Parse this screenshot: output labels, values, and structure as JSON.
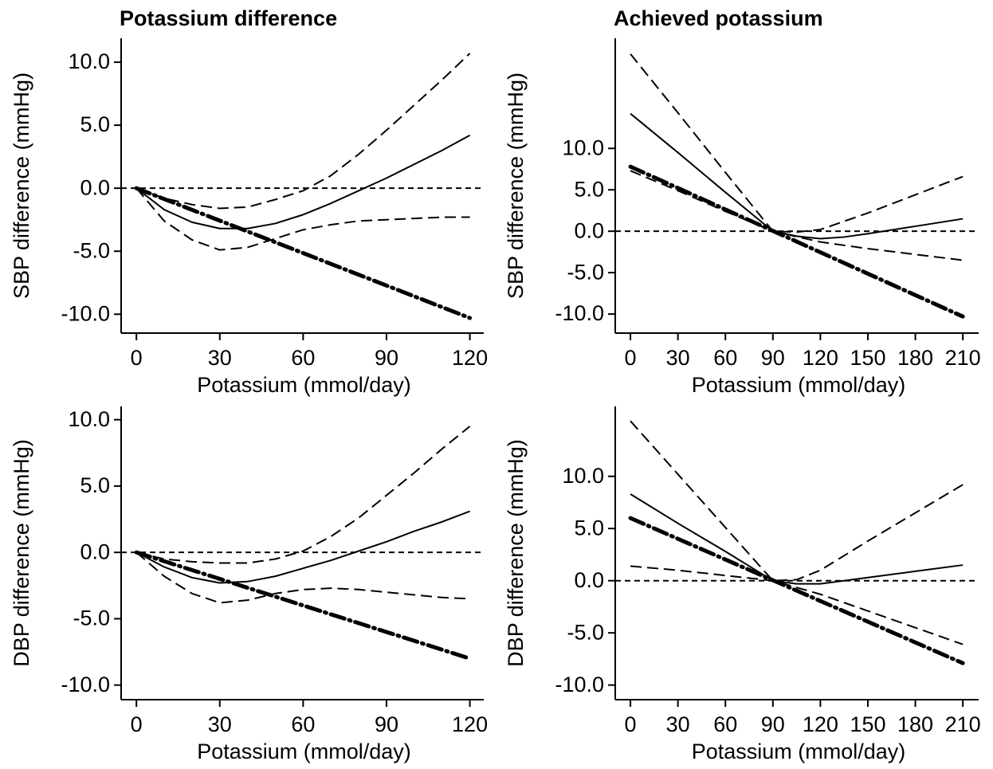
{
  "chart_data": [
    {
      "type": "line",
      "title": "Potassium difference",
      "x_label": "Potassium (mmol/day)",
      "y_label": "SBP difference (mmHg)",
      "xlim": [
        -5.5,
        125
      ],
      "ylim": [
        -11.5,
        11.9
      ],
      "xticks": [
        0,
        30,
        60,
        90,
        120
      ],
      "yticks": [
        {
          "value": -10,
          "label": "-10.0"
        },
        {
          "value": -5,
          "label": "-5.0"
        },
        {
          "value": 0,
          "label": "0.0"
        },
        {
          "value": 5,
          "label": "5.0"
        },
        {
          "value": 10,
          "label": "10.0"
        }
      ],
      "reference_line": 0,
      "series": [
        {
          "color": "#000000",
          "style": "solid",
          "x": [
            0,
            10,
            20,
            30,
            40,
            50,
            60,
            70,
            80,
            90,
            100,
            110,
            120
          ],
          "values": [
            0,
            -1.7,
            -2.7,
            -3.2,
            -3.2,
            -2.8,
            -2.1,
            -1.2,
            -0.2,
            0.8,
            1.9,
            3.0,
            4.2
          ]
        },
        {
          "color": "#000000",
          "style": "dashed",
          "x": [
            0,
            10,
            20,
            30,
            40,
            50,
            60,
            70,
            80,
            90,
            100,
            110,
            120
          ],
          "values": [
            0,
            -0.8,
            -1.3,
            -1.6,
            -1.5,
            -0.9,
            -0.2,
            1.0,
            2.7,
            4.6,
            6.6,
            8.6,
            10.7
          ]
        },
        {
          "color": "#000000",
          "style": "dashed",
          "x": [
            0,
            10,
            20,
            30,
            40,
            50,
            60,
            70,
            80,
            90,
            100,
            110,
            120
          ],
          "values": [
            0,
            -2.6,
            -4.1,
            -4.9,
            -4.7,
            -4.0,
            -3.3,
            -2.9,
            -2.6,
            -2.5,
            -2.4,
            -2.3,
            -2.3
          ]
        },
        {
          "color": "#000000",
          "style": "dashdot",
          "x": [
            0,
            120
          ],
          "values": [
            0,
            -10.3
          ]
        }
      ]
    },
    {
      "type": "line",
      "title": "Achieved potassium",
      "x_label": "Potassium (mmol/day)",
      "y_label": "SBP difference (mmHg)",
      "xlim": [
        -9.6,
        220
      ],
      "ylim": [
        -12.3,
        23.3
      ],
      "xticks": [
        0,
        30,
        60,
        90,
        120,
        150,
        180,
        210
      ],
      "yticks": [
        {
          "value": -10,
          "label": "-10.0"
        },
        {
          "value": -5,
          "label": "-5.0"
        },
        {
          "value": 0,
          "label": "0.0"
        },
        {
          "value": 5,
          "label": "5.0"
        },
        {
          "value": 10,
          "label": "10.0"
        }
      ],
      "reference_line": 0,
      "series": [
        {
          "color": "#000000",
          "style": "solid",
          "x": [
            0,
            30,
            60,
            90,
            105,
            120,
            135,
            150,
            180,
            210
          ],
          "values": [
            14.2,
            9.5,
            4.7,
            0,
            -0.6,
            -0.9,
            -0.7,
            -0.3,
            0.6,
            1.5
          ]
        },
        {
          "color": "#000000",
          "style": "dashed",
          "x": [
            0,
            30,
            60,
            90,
            105,
            120,
            150,
            180,
            210
          ],
          "values": [
            21.4,
            14.3,
            7.1,
            0,
            -0.1,
            0.2,
            2.2,
            4.4,
            6.6
          ]
        },
        {
          "color": "#000000",
          "style": "dashed",
          "x": [
            0,
            30,
            60,
            90,
            120,
            150,
            180,
            210
          ],
          "values": [
            7.3,
            4.9,
            2.4,
            0,
            -1.3,
            -2.1,
            -2.8,
            -3.5
          ]
        },
        {
          "color": "#000000",
          "style": "dashdot",
          "x": [
            0,
            210
          ],
          "values": [
            7.8,
            -10.3
          ]
        }
      ]
    },
    {
      "type": "line",
      "x_label": "Potassium (mmol/day)",
      "y_label": "DBP difference (mmHg)",
      "xlim": [
        -5.5,
        125
      ],
      "ylim": [
        -11.1,
        11.0
      ],
      "xticks": [
        0,
        30,
        60,
        90,
        120
      ],
      "yticks": [
        {
          "value": -10,
          "label": "-10.0"
        },
        {
          "value": -5,
          "label": "-5.0"
        },
        {
          "value": 0,
          "label": "0.0"
        },
        {
          "value": 5,
          "label": "5.0"
        },
        {
          "value": 10,
          "label": "10.0"
        }
      ],
      "reference_line": 0,
      "series": [
        {
          "color": "#000000",
          "style": "solid",
          "x": [
            0,
            10,
            20,
            30,
            40,
            50,
            60,
            70,
            80,
            90,
            100,
            110,
            120
          ],
          "values": [
            0,
            -1.1,
            -1.9,
            -2.3,
            -2.2,
            -1.8,
            -1.2,
            -0.6,
            0.1,
            0.8,
            1.6,
            2.3,
            3.1
          ]
        },
        {
          "color": "#000000",
          "style": "dashed",
          "x": [
            0,
            10,
            20,
            30,
            40,
            50,
            60,
            70,
            80,
            90,
            100,
            110,
            120
          ],
          "values": [
            0,
            -0.5,
            -0.7,
            -0.8,
            -0.8,
            -0.5,
            0.1,
            1.2,
            2.6,
            4.3,
            6.0,
            7.8,
            9.5
          ]
        },
        {
          "color": "#000000",
          "style": "dashed",
          "x": [
            0,
            10,
            20,
            30,
            40,
            50,
            60,
            70,
            80,
            90,
            100,
            110,
            120
          ],
          "values": [
            0,
            -1.8,
            -3.1,
            -3.8,
            -3.6,
            -3.1,
            -2.8,
            -2.7,
            -2.8,
            -3.0,
            -3.2,
            -3.4,
            -3.5
          ]
        },
        {
          "color": "#000000",
          "style": "dashdot",
          "x": [
            0,
            120
          ],
          "values": [
            0,
            -8.0
          ]
        }
      ]
    },
    {
      "type": "line",
      "x_label": "Potassium (mmol/day)",
      "y_label": "DBP difference (mmHg)",
      "xlim": [
        -9.6,
        220
      ],
      "ylim": [
        -11.4,
        16.7
      ],
      "xticks": [
        0,
        30,
        60,
        90,
        120,
        150,
        180,
        210
      ],
      "yticks": [
        {
          "value": -10,
          "label": "-10.0"
        },
        {
          "value": -5,
          "label": "-5.0"
        },
        {
          "value": 0,
          "label": "0.0"
        },
        {
          "value": 5,
          "label": "5.0"
        },
        {
          "value": 10,
          "label": "10.0"
        }
      ],
      "reference_line": 0,
      "series": [
        {
          "color": "#000000",
          "style": "solid",
          "x": [
            0,
            30,
            60,
            90,
            105,
            120,
            150,
            180,
            210
          ],
          "values": [
            8.3,
            5.5,
            2.8,
            0,
            -0.3,
            -0.3,
            0.3,
            0.9,
            1.5
          ]
        },
        {
          "color": "#000000",
          "style": "dashed",
          "x": [
            0,
            30,
            60,
            90,
            105,
            120,
            150,
            180,
            210
          ],
          "values": [
            15.3,
            10.2,
            5.1,
            0,
            0.1,
            1.0,
            3.8,
            6.5,
            9.2
          ]
        },
        {
          "color": "#000000",
          "style": "dashed",
          "x": [
            0,
            30,
            60,
            90,
            120,
            150,
            180,
            210
          ],
          "values": [
            1.4,
            1.0,
            0.5,
            0,
            -1.3,
            -2.9,
            -4.5,
            -6.1
          ]
        },
        {
          "color": "#000000",
          "style": "dashdot",
          "x": [
            0,
            210
          ],
          "values": [
            6.0,
            -7.9
          ]
        }
      ]
    }
  ]
}
